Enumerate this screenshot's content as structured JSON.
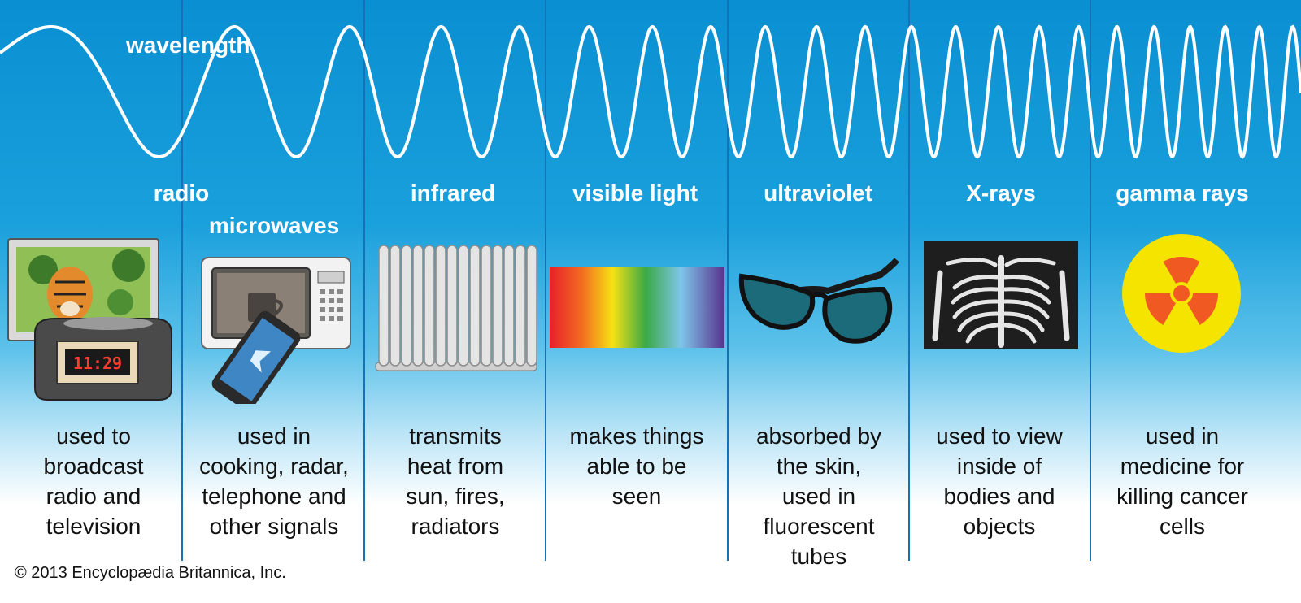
{
  "wave_label": "wavelength",
  "bands": [
    {
      "key": "radio",
      "label": "radio",
      "desc": [
        "used to",
        "broadcast",
        "radio and",
        "television"
      ]
    },
    {
      "key": "microwaves",
      "label": "microwaves",
      "desc": [
        "used in",
        "cooking, radar,",
        "telephone and",
        "other signals"
      ]
    },
    {
      "key": "infrared",
      "label": "infrared",
      "desc": [
        "transmits",
        "heat from",
        "sun, fires,",
        "radiators"
      ]
    },
    {
      "key": "visible-light",
      "label": "visible light",
      "desc": [
        "makes things",
        "able to be",
        "seen"
      ]
    },
    {
      "key": "ultraviolet",
      "label": "ultraviolet",
      "desc": [
        "absorbed by",
        "the skin,",
        "used in",
        "fluorescent",
        "tubes"
      ]
    },
    {
      "key": "x-rays",
      "label": "X-rays",
      "desc": [
        "used to view",
        "inside of",
        "bodies and",
        "objects"
      ]
    },
    {
      "key": "gamma-rays",
      "label": "gamma rays",
      "desc": [
        "used in",
        "medicine for",
        "killing cancer",
        "cells"
      ]
    }
  ],
  "clock_display": "11:29",
  "copyright": "© 2013 Encyclopædia Britannica, Inc.",
  "colors": {
    "sky": "#0a8fd2",
    "divider": "#1572b6",
    "wave": "#ffffff",
    "radiation_yellow": "#f5e400",
    "radiation_orange": "#f05a22"
  },
  "icons": [
    "tv-icon",
    "clock-radio-icon",
    "microwave-oven-icon",
    "smartphone-icon",
    "radiator-icon",
    "spectrum-icon",
    "sunglasses-icon",
    "xray-chest-icon",
    "radiation-symbol-icon"
  ]
}
